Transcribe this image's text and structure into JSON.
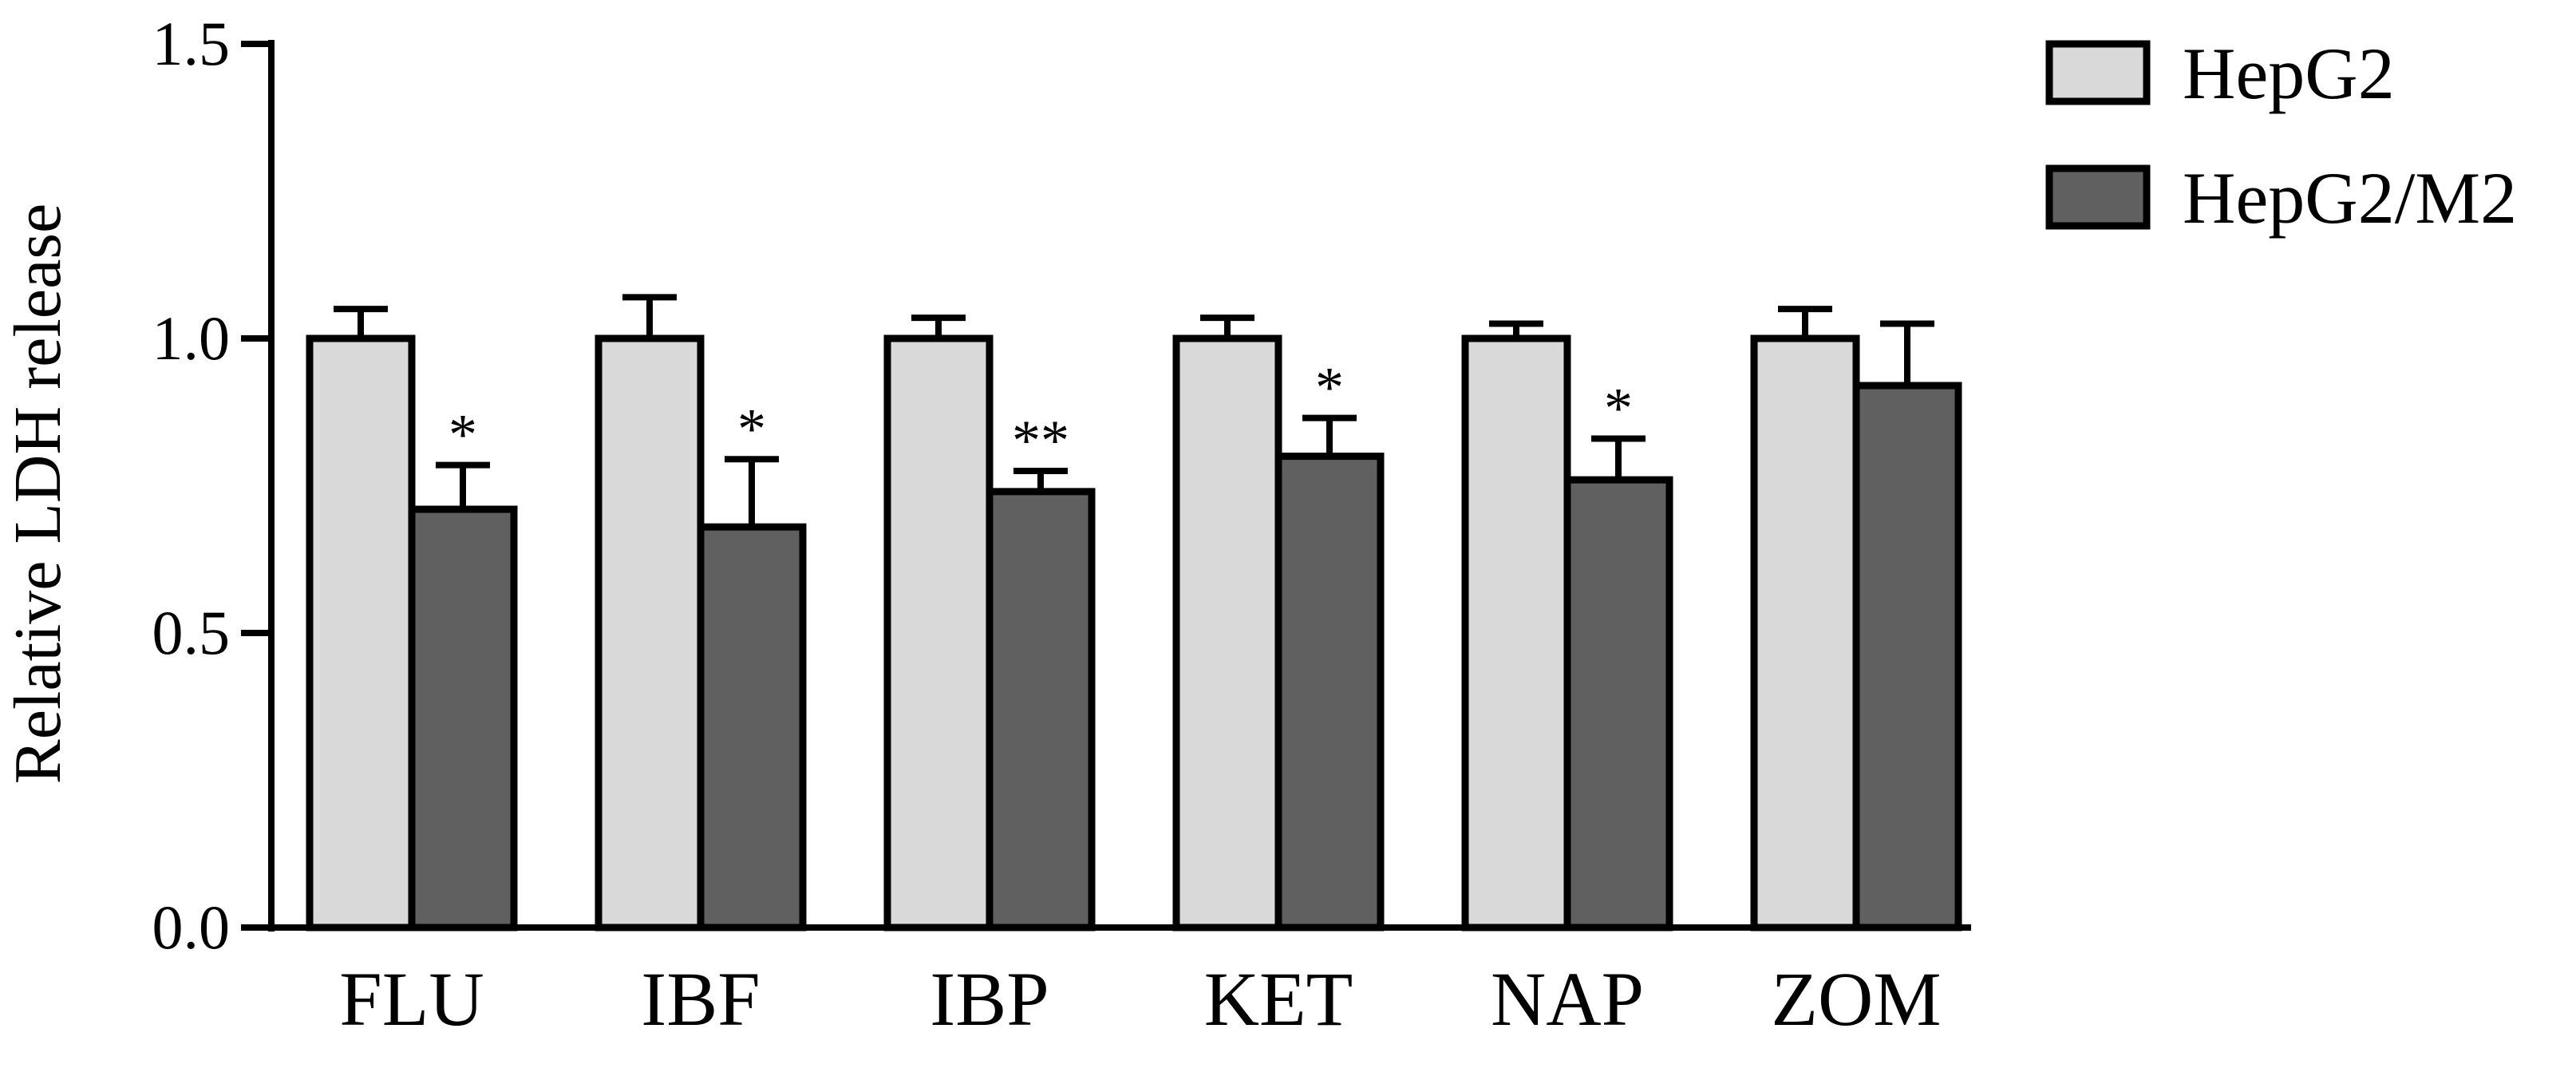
{
  "chart_data": {
    "type": "bar",
    "title": "",
    "xlabel": "",
    "ylabel": "Relative LDH release",
    "ylim": [
      0,
      1.5
    ],
    "yticks": [
      "0.0",
      "0.5",
      "1.0",
      "1.5"
    ],
    "ytick_values": [
      0,
      0.5,
      1.0,
      1.5
    ],
    "categories": [
      "FLU",
      "IBF",
      "IBP",
      "KET",
      "NAP",
      "ZOM"
    ],
    "series": [
      {
        "name": "HepG2",
        "color": "#d9d9d9",
        "values": [
          1.0,
          1.0,
          1.0,
          1.0,
          1.0,
          1.0
        ],
        "errors": [
          0.05,
          0.07,
          0.035,
          0.035,
          0.025,
          0.05
        ],
        "significance": [
          "",
          "",
          "",
          "",
          "",
          ""
        ]
      },
      {
        "name": "HepG2/M2",
        "color": "#606060",
        "values": [
          0.71,
          0.68,
          0.74,
          0.8,
          0.76,
          0.92
        ],
        "errors": [
          0.075,
          0.115,
          0.035,
          0.065,
          0.07,
          0.105
        ],
        "significance": [
          "*",
          "*",
          "**",
          "*",
          "*",
          ""
        ]
      }
    ],
    "grid": false,
    "legend_position": "top-right"
  }
}
